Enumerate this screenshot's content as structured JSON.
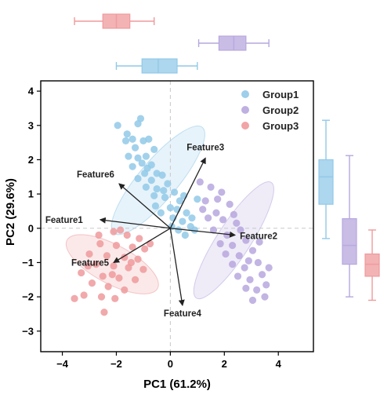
{
  "chart_data": {
    "type": "scatter",
    "subtype": "pca-biplot-with-marginal-boxplots",
    "xlabel": "PC1 (61.2%)",
    "ylabel": "PC2 (29.6%)",
    "xlim": [
      -4.8,
      5.3
    ],
    "ylim": [
      -3.6,
      4.3
    ],
    "xticks": [
      -4,
      -2,
      0,
      2,
      4
    ],
    "yticks": [
      -3,
      -2,
      -1,
      0,
      1,
      2,
      3,
      4
    ],
    "grid": false,
    "zero_lines": true,
    "legend_position": "top-right",
    "series": [
      {
        "name": "Group1",
        "color": "#92c9e8",
        "points": [
          [
            -1.95,
            3.0
          ],
          [
            -1.6,
            2.75
          ],
          [
            -1.2,
            3.05
          ],
          [
            -1.1,
            3.2
          ],
          [
            -1.4,
            2.6
          ],
          [
            -1.0,
            2.55
          ],
          [
            -0.8,
            2.6
          ],
          [
            -1.3,
            2.35
          ],
          [
            -1.55,
            2.1
          ],
          [
            -1.2,
            2.05
          ],
          [
            -0.9,
            2.1
          ],
          [
            -0.6,
            2.3
          ],
          [
            -1.05,
            1.9
          ],
          [
            -0.7,
            1.85
          ],
          [
            -1.4,
            1.8
          ],
          [
            -0.95,
            1.6
          ],
          [
            -0.5,
            1.6
          ],
          [
            -1.2,
            1.45
          ],
          [
            -0.7,
            1.4
          ],
          [
            -0.3,
            1.55
          ],
          [
            -0.9,
            1.2
          ],
          [
            -0.5,
            1.15
          ],
          [
            -0.1,
            1.3
          ],
          [
            0.15,
            1.05
          ],
          [
            -0.6,
            0.95
          ],
          [
            -0.2,
            0.9
          ],
          [
            0.35,
            0.8
          ],
          [
            -0.55,
            0.65
          ],
          [
            0.0,
            0.6
          ],
          [
            0.25,
            0.55
          ],
          [
            0.6,
            0.45
          ],
          [
            0.1,
            0.3
          ],
          [
            0.45,
            0.2
          ],
          [
            0.8,
            0.3
          ],
          [
            0.3,
            -0.05
          ],
          [
            0.75,
            0.05
          ],
          [
            0.55,
            -0.2
          ],
          [
            1.0,
            0.85
          ],
          [
            -0.35,
            0.45
          ],
          [
            0.9,
            -0.05
          ],
          [
            -1.65,
            2.55
          ],
          [
            -0.85,
            1.75
          ],
          [
            -0.25,
            1.1
          ],
          [
            0.5,
            0.95
          ],
          [
            0.05,
            0.05
          ]
        ],
        "ellipse": {
          "center": [
            -0.45,
            1.4
          ],
          "rx": 2.55,
          "ry": 0.72,
          "angle_deg": -50
        }
      },
      {
        "name": "Group2",
        "color": "#b7a7de",
        "points": [
          [
            1.1,
            1.35
          ],
          [
            1.5,
            1.2
          ],
          [
            1.9,
            1.05
          ],
          [
            1.3,
            0.8
          ],
          [
            1.75,
            0.85
          ],
          [
            2.2,
            0.7
          ],
          [
            1.4,
            0.3
          ],
          [
            1.95,
            0.25
          ],
          [
            2.35,
            0.4
          ],
          [
            1.6,
            -0.05
          ],
          [
            2.1,
            -0.2
          ],
          [
            2.6,
            -0.05
          ],
          [
            1.85,
            -0.45
          ],
          [
            2.3,
            -0.5
          ],
          [
            2.8,
            -0.35
          ],
          [
            2.05,
            -0.75
          ],
          [
            2.55,
            -0.8
          ],
          [
            3.05,
            -0.65
          ],
          [
            2.3,
            -1.05
          ],
          [
            2.75,
            -1.15
          ],
          [
            3.25,
            -1.0
          ],
          [
            2.5,
            -1.4
          ],
          [
            2.95,
            -1.5
          ],
          [
            3.4,
            -1.35
          ],
          [
            2.8,
            -1.75
          ],
          [
            3.2,
            -1.8
          ],
          [
            3.55,
            -1.65
          ],
          [
            3.05,
            -2.1
          ],
          [
            3.5,
            -2.0
          ],
          [
            3.65,
            -1.15
          ],
          [
            1.2,
            0.55
          ],
          [
            2.9,
            -0.95
          ],
          [
            3.3,
            -0.4
          ],
          [
            1.7,
            0.45
          ],
          [
            2.45,
            0.15
          ]
        ],
        "ellipse": {
          "center": [
            2.35,
            -0.35
          ],
          "rx": 2.55,
          "ry": 0.62,
          "angle_deg": -57
        }
      },
      {
        "name": "Group3",
        "color": "#ef9a9c",
        "points": [
          [
            -2.1,
            -0.1
          ],
          [
            -1.6,
            -0.2
          ],
          [
            -1.15,
            -0.3
          ],
          [
            -2.6,
            -0.45
          ],
          [
            -2.0,
            -0.5
          ],
          [
            -1.4,
            -0.55
          ],
          [
            -0.95,
            -0.6
          ],
          [
            -3.0,
            -0.75
          ],
          [
            -2.35,
            -0.8
          ],
          [
            -1.7,
            -0.85
          ],
          [
            -1.2,
            -0.9
          ],
          [
            -2.75,
            -1.05
          ],
          [
            -2.1,
            -1.1
          ],
          [
            -1.55,
            -1.15
          ],
          [
            -1.0,
            -1.2
          ],
          [
            -3.3,
            -1.3
          ],
          [
            -2.5,
            -1.4
          ],
          [
            -1.9,
            -1.45
          ],
          [
            -1.3,
            -1.5
          ],
          [
            -2.9,
            -1.6
          ],
          [
            -2.3,
            -1.7
          ],
          [
            -1.7,
            -1.8
          ],
          [
            -3.55,
            -2.05
          ],
          [
            -2.55,
            -2.0
          ],
          [
            -2.05,
            -2.05
          ],
          [
            -3.2,
            -1.95
          ],
          [
            -2.45,
            -2.45
          ],
          [
            -1.85,
            -0.05
          ],
          [
            -2.65,
            -0.2
          ],
          [
            -3.05,
            -1.1
          ],
          [
            -0.75,
            -0.45
          ],
          [
            -2.15,
            -1.35
          ],
          [
            -1.45,
            -1.0
          ]
        ],
        "ellipse": {
          "center": [
            -2.15,
            -1.05
          ],
          "rx": 1.9,
          "ry": 0.72,
          "angle_deg": 28
        }
      }
    ],
    "loadings": [
      {
        "name": "Feature1",
        "x": -2.6,
        "y": 0.25
      },
      {
        "name": "Feature2",
        "x": 2.4,
        "y": -0.2
      },
      {
        "name": "Feature3",
        "x": 1.3,
        "y": 2.05
      },
      {
        "name": "Feature4",
        "x": 0.45,
        "y": -2.25
      },
      {
        "name": "Feature5",
        "x": -2.1,
        "y": -1.0
      },
      {
        "name": "Feature6",
        "x": -1.9,
        "y": 1.3
      }
    ],
    "marginal_boxplots": {
      "pc1": [
        {
          "group": "Group3",
          "whisker_low": -3.55,
          "q1": -2.5,
          "median": -2.0,
          "q3": -1.5,
          "whisker_high": -0.6
        },
        {
          "group": "Group2",
          "whisker_low": 1.05,
          "q1": 1.8,
          "median": 2.35,
          "q3": 2.8,
          "whisker_high": 3.65
        },
        {
          "group": "Group1",
          "whisker_low": -2.0,
          "q1": -1.05,
          "median": -0.45,
          "q3": 0.25,
          "whisker_high": 1.0
        }
      ],
      "pc2": [
        {
          "group": "Group1",
          "whisker_low": -0.3,
          "q1": 0.7,
          "median": 1.5,
          "q3": 2.0,
          "whisker_high": 3.15
        },
        {
          "group": "Group2",
          "whisker_low": -2.0,
          "q1": -1.05,
          "median": -0.5,
          "q3": 0.28,
          "whisker_high": 2.12
        },
        {
          "group": "Group3",
          "whisker_low": -2.1,
          "q1": -1.4,
          "median": -1.05,
          "q3": -0.75,
          "whisker_high": -0.05
        }
      ]
    }
  }
}
